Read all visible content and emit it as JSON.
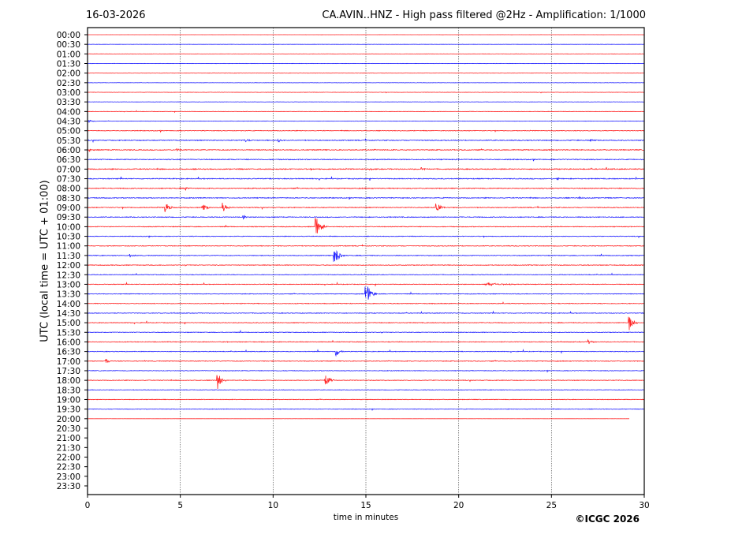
{
  "header": {
    "date": "16-03-2026",
    "title": "CA.AVIN..HNZ - High pass filtered @2Hz - Amplification: 1/1000"
  },
  "copyright": "©ICGC 2026",
  "chart_data": {
    "type": "line",
    "title": "CA.AVIN..HNZ - High pass filtered @2Hz - Amplification: 1/1000",
    "xlabel": "time in minutes",
    "ylabel": "UTC (local time = UTC + 01:00)",
    "xlim": [
      0,
      30
    ],
    "xticks": [
      "0",
      "5",
      "10",
      "15",
      "20",
      "25",
      "30"
    ],
    "grid": "vertical dotted at 5-minute intervals",
    "colors": {
      "even_rows": "#ff0000",
      "odd_rows": "#0000ff",
      "axis": "#000000"
    },
    "rows": [
      {
        "label": "00:00",
        "noise": 0.05
      },
      {
        "label": "00:30",
        "noise": 0.12
      },
      {
        "label": "01:00",
        "noise": 0.18
      },
      {
        "label": "01:30",
        "noise": 0.2
      },
      {
        "label": "02:00",
        "noise": 0.2
      },
      {
        "label": "02:30",
        "noise": 0.2
      },
      {
        "label": "03:00",
        "noise": 0.22
      },
      {
        "label": "03:30",
        "noise": 0.2
      },
      {
        "label": "04:00",
        "noise": 0.22
      },
      {
        "label": "04:30",
        "noise": 0.25
      },
      {
        "label": "05:00",
        "noise": 0.4
      },
      {
        "label": "05:30",
        "noise": 0.55
      },
      {
        "label": "06:00",
        "noise": 0.55
      },
      {
        "label": "06:30",
        "noise": 0.55
      },
      {
        "label": "07:00",
        "noise": 0.6
      },
      {
        "label": "07:30",
        "noise": 0.55
      },
      {
        "label": "08:00",
        "noise": 0.55
      },
      {
        "label": "08:30",
        "noise": 0.55
      },
      {
        "label": "09:00",
        "noise": 0.5
      },
      {
        "label": "09:30",
        "noise": 0.5
      },
      {
        "label": "10:00",
        "noise": 0.45
      },
      {
        "label": "10:30",
        "noise": 0.4
      },
      {
        "label": "11:00",
        "noise": 0.45
      },
      {
        "label": "11:30",
        "noise": 0.45
      },
      {
        "label": "12:00",
        "noise": 0.45
      },
      {
        "label": "12:30",
        "noise": 0.4
      },
      {
        "label": "13:00",
        "noise": 0.4
      },
      {
        "label": "13:30",
        "noise": 0.4
      },
      {
        "label": "14:00",
        "noise": 0.45
      },
      {
        "label": "14:30",
        "noise": 0.4
      },
      {
        "label": "15:00",
        "noise": 0.45
      },
      {
        "label": "15:30",
        "noise": 0.4
      },
      {
        "label": "16:00",
        "noise": 0.45
      },
      {
        "label": "16:30",
        "noise": 0.4
      },
      {
        "label": "17:00",
        "noise": 0.45
      },
      {
        "label": "17:30",
        "noise": 0.4
      },
      {
        "label": "18:00",
        "noise": 0.4
      },
      {
        "label": "18:30",
        "noise": 0.35
      },
      {
        "label": "19:00",
        "noise": 0.35
      },
      {
        "label": "19:30",
        "noise": 0.35
      },
      {
        "label": "20:00",
        "noise": 0.05,
        "end": 29.2
      },
      {
        "label": "20:30"
      },
      {
        "label": "21:00"
      },
      {
        "label": "21:30"
      },
      {
        "label": "22:00"
      },
      {
        "label": "22:30"
      },
      {
        "label": "23:00"
      },
      {
        "label": "23:30"
      }
    ],
    "events": [
      {
        "row": "04:30",
        "minute": 0.1,
        "amp": 2,
        "dur": 0.4
      },
      {
        "row": "05:30",
        "minute": 8.5,
        "amp": 3,
        "dur": 0.5
      },
      {
        "row": "05:30",
        "minute": 10.3,
        "amp": 2,
        "dur": 0.3
      },
      {
        "row": "05:30",
        "minute": 27.1,
        "amp": 2,
        "dur": 0.4
      },
      {
        "row": "06:00",
        "minute": 0.1,
        "amp": 2.5,
        "dur": 0.3
      },
      {
        "row": "06:00",
        "minute": 4.8,
        "amp": 2.5,
        "dur": 0.3
      },
      {
        "row": "07:00",
        "minute": 15.2,
        "amp": 2,
        "dur": 0.4
      },
      {
        "row": "07:00",
        "minute": 18.0,
        "amp": 2,
        "dur": 0.4
      },
      {
        "row": "07:30",
        "minute": 25.3,
        "amp": 2.5,
        "dur": 0.3
      },
      {
        "row": "07:30",
        "minute": 29.5,
        "amp": 2.5,
        "dur": 0.3
      },
      {
        "row": "08:00",
        "minute": 5.3,
        "amp": 2,
        "dur": 0.4
      },
      {
        "row": "08:30",
        "minute": 26.5,
        "amp": 2,
        "dur": 0.4
      },
      {
        "row": "09:00",
        "minute": 4.2,
        "amp": 8,
        "dur": 0.5
      },
      {
        "row": "09:00",
        "minute": 6.2,
        "amp": 6,
        "dur": 0.5
      },
      {
        "row": "09:00",
        "minute": 7.3,
        "amp": 6,
        "dur": 0.5
      },
      {
        "row": "09:00",
        "minute": 18.8,
        "amp": 8,
        "dur": 0.5
      },
      {
        "row": "09:30",
        "minute": 8.4,
        "amp": 2.5,
        "dur": 0.4
      },
      {
        "row": "10:00",
        "minute": 12.3,
        "amp": 14,
        "dur": 0.6
      },
      {
        "row": "11:30",
        "minute": 13.3,
        "amp": 12,
        "dur": 0.6
      },
      {
        "row": "11:30",
        "minute": 2.3,
        "amp": 2.5,
        "dur": 0.4
      },
      {
        "row": "13:00",
        "minute": 21.5,
        "amp": 2,
        "dur": 2.0
      },
      {
        "row": "13:30",
        "minute": 15.0,
        "amp": 16,
        "dur": 0.6
      },
      {
        "row": "15:00",
        "minute": 29.2,
        "amp": 10,
        "dur": 0.5
      },
      {
        "row": "16:00",
        "minute": 27.0,
        "amp": 2.5,
        "dur": 0.5
      },
      {
        "row": "16:30",
        "minute": 13.4,
        "amp": 6,
        "dur": 0.5
      },
      {
        "row": "17:00",
        "minute": 1.0,
        "amp": 3,
        "dur": 0.4
      },
      {
        "row": "18:00",
        "minute": 7.0,
        "amp": 12,
        "dur": 0.5
      },
      {
        "row": "18:00",
        "minute": 12.8,
        "amp": 11,
        "dur": 0.5
      }
    ]
  }
}
